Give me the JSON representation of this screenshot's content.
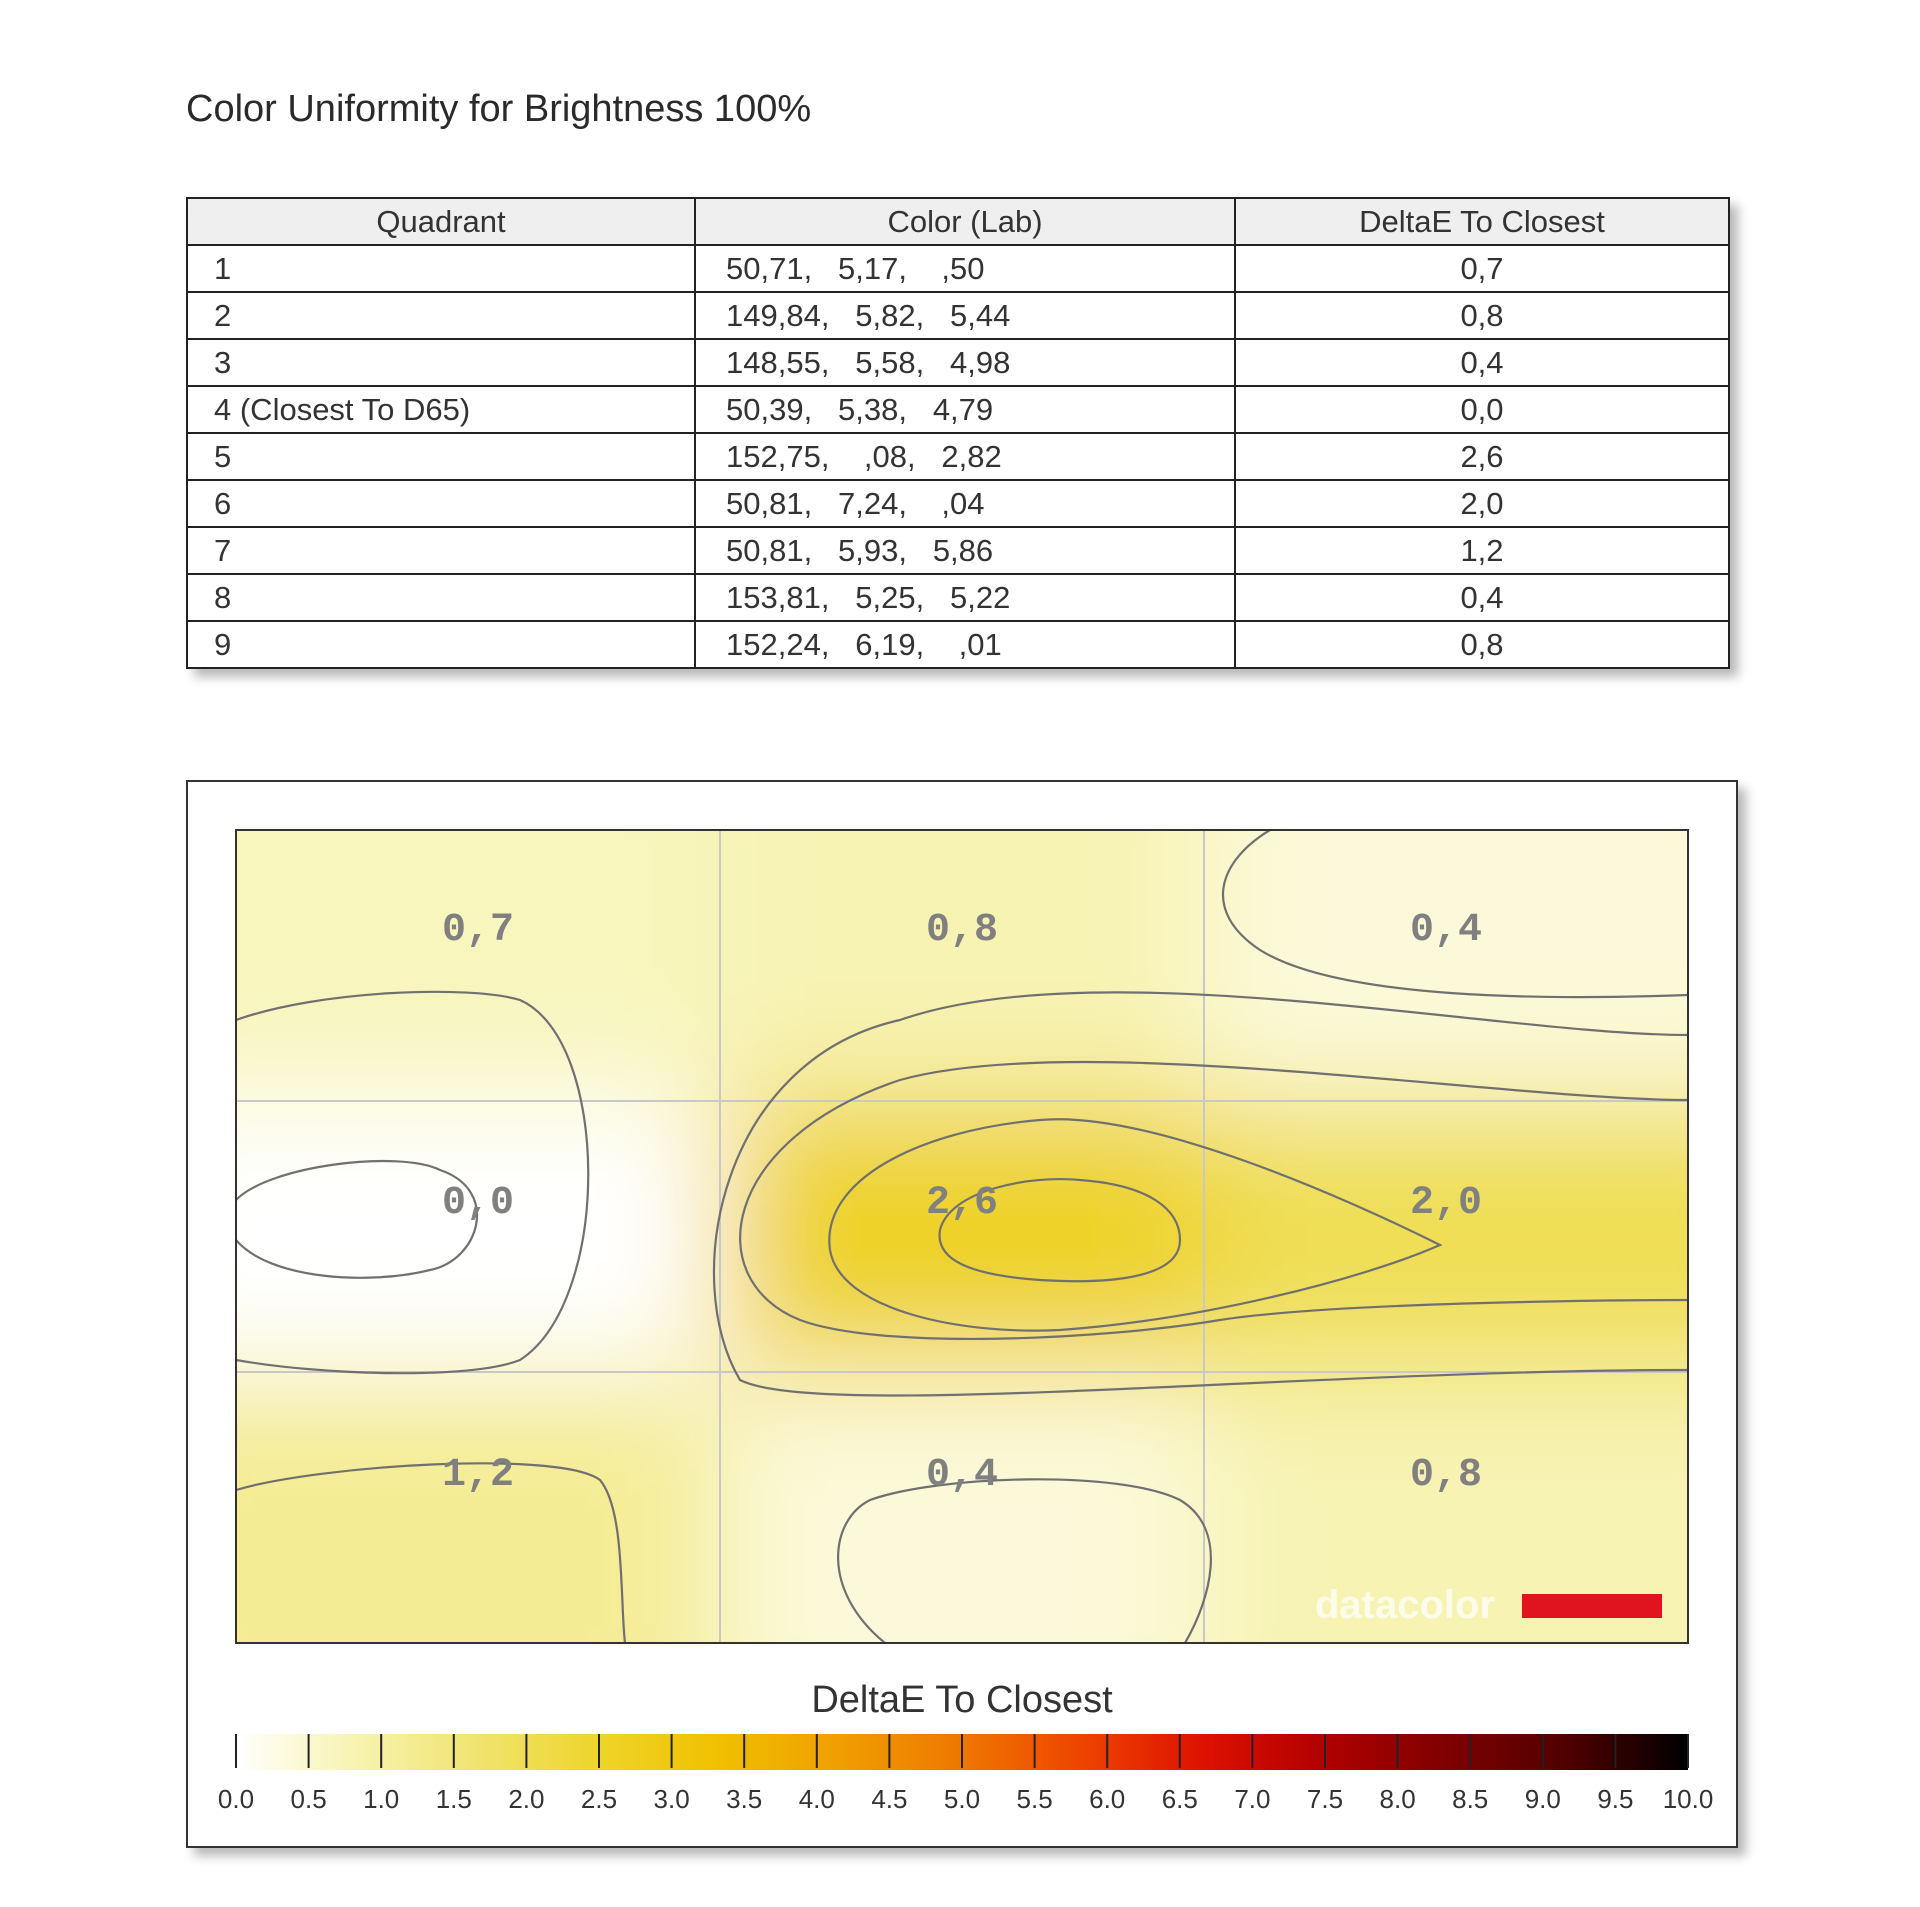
{
  "page": {
    "title": "Color Uniformity for Brightness 100%"
  },
  "table": {
    "headers": [
      "Quadrant",
      "Color (Lab)",
      "DeltaE To Closest"
    ],
    "rows": [
      {
        "quadrant": "1",
        "lab": "50,71,   5,17,    ,50",
        "delta": "0,7"
      },
      {
        "quadrant": "2",
        "lab": "149,84,   5,82,   5,44",
        "delta": "0,8"
      },
      {
        "quadrant": "3",
        "lab": "148,55,   5,58,   4,98",
        "delta": "0,4"
      },
      {
        "quadrant": "4 (Closest To D65)",
        "lab": "50,39,   5,38,   4,79",
        "delta": "0,0"
      },
      {
        "quadrant": "5",
        "lab": "152,75,    ,08,   2,82",
        "delta": "2,6"
      },
      {
        "quadrant": "6",
        "lab": "50,81,   7,24,    ,04",
        "delta": "2,0"
      },
      {
        "quadrant": "7",
        "lab": "50,81,   5,93,   5,86",
        "delta": "1,2"
      },
      {
        "quadrant": "8",
        "lab": "153,81,   5,25,   5,22",
        "delta": "0,4"
      },
      {
        "quadrant": "9",
        "lab": "152,24,   6,19,    ,01",
        "delta": "0,8"
      }
    ]
  },
  "chart_data": {
    "type": "heatmap",
    "grid": {
      "rows": 3,
      "cols": 3
    },
    "values": [
      [
        0.7,
        0.8,
        0.4
      ],
      [
        0.0,
        2.6,
        2.0
      ],
      [
        1.2,
        0.4,
        0.8
      ]
    ],
    "labels": [
      [
        "0,7",
        "0,8",
        "0,4"
      ],
      [
        "0,0",
        "2,6",
        "2,0"
      ],
      [
        "1,2",
        "0,4",
        "0,8"
      ]
    ],
    "colorbar": {
      "title": "DeltaE To Closest",
      "min": 0,
      "max": 10,
      "tick_labels": [
        "0.0",
        "0.5",
        "1.0",
        "1.5",
        "2.0",
        "2.5",
        "3.0",
        "3.5",
        "4.0",
        "4.5",
        "5.0",
        "5.5",
        "6.0",
        "6.5",
        "7.0",
        "7.5",
        "8.0",
        "8.5",
        "9.0",
        "9.5",
        "10.0"
      ]
    },
    "watermark": "datacolor",
    "colors": {
      "stops": [
        "#ffffff",
        "#f7f3b0",
        "#f0e470",
        "#eed52a",
        "#efc000",
        "#ef9e00",
        "#ee7700",
        "#ee4400",
        "#dd1100",
        "#b00000",
        "#800000",
        "#500000",
        "#000000"
      ],
      "contour": "#707070",
      "gridline": "#c8c8c8",
      "value_label": "#808080",
      "brand_bar": "#e0141e"
    }
  }
}
